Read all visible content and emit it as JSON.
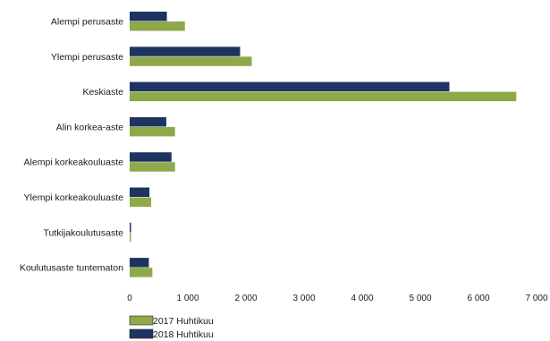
{
  "chart_data": {
    "type": "bar",
    "orientation": "horizontal",
    "categories": [
      "Alempi perusaste",
      "Ylempi perusaste",
      "Keskiaste",
      "Alin korkea-aste",
      "Alempi korkeakouluaste",
      "Ylempi korkeakouluaste",
      "Tutkijakoulutusaste",
      "Koulutusaste tuntematon"
    ],
    "series": [
      {
        "name": "2017 Huhtikuu",
        "color": "#8fa84a",
        "values": [
          950,
          2100,
          6650,
          780,
          780,
          370,
          10,
          390
        ]
      },
      {
        "name": "2018 Huhtikuu",
        "color": "#1d3461",
        "values": [
          640,
          1900,
          5500,
          630,
          720,
          340,
          10,
          330
        ]
      }
    ],
    "xlim": [
      0,
      7000
    ],
    "xticks": [
      0,
      1000,
      2000,
      3000,
      4000,
      5000,
      6000,
      7000
    ],
    "xtick_labels": [
      "0",
      "1 000",
      "2 000",
      "3 000",
      "4 000",
      "5 000",
      "6 000",
      "7 000"
    ],
    "grid": false,
    "legend_position": "bottom-left",
    "title": "",
    "xlabel": "",
    "ylabel": ""
  }
}
